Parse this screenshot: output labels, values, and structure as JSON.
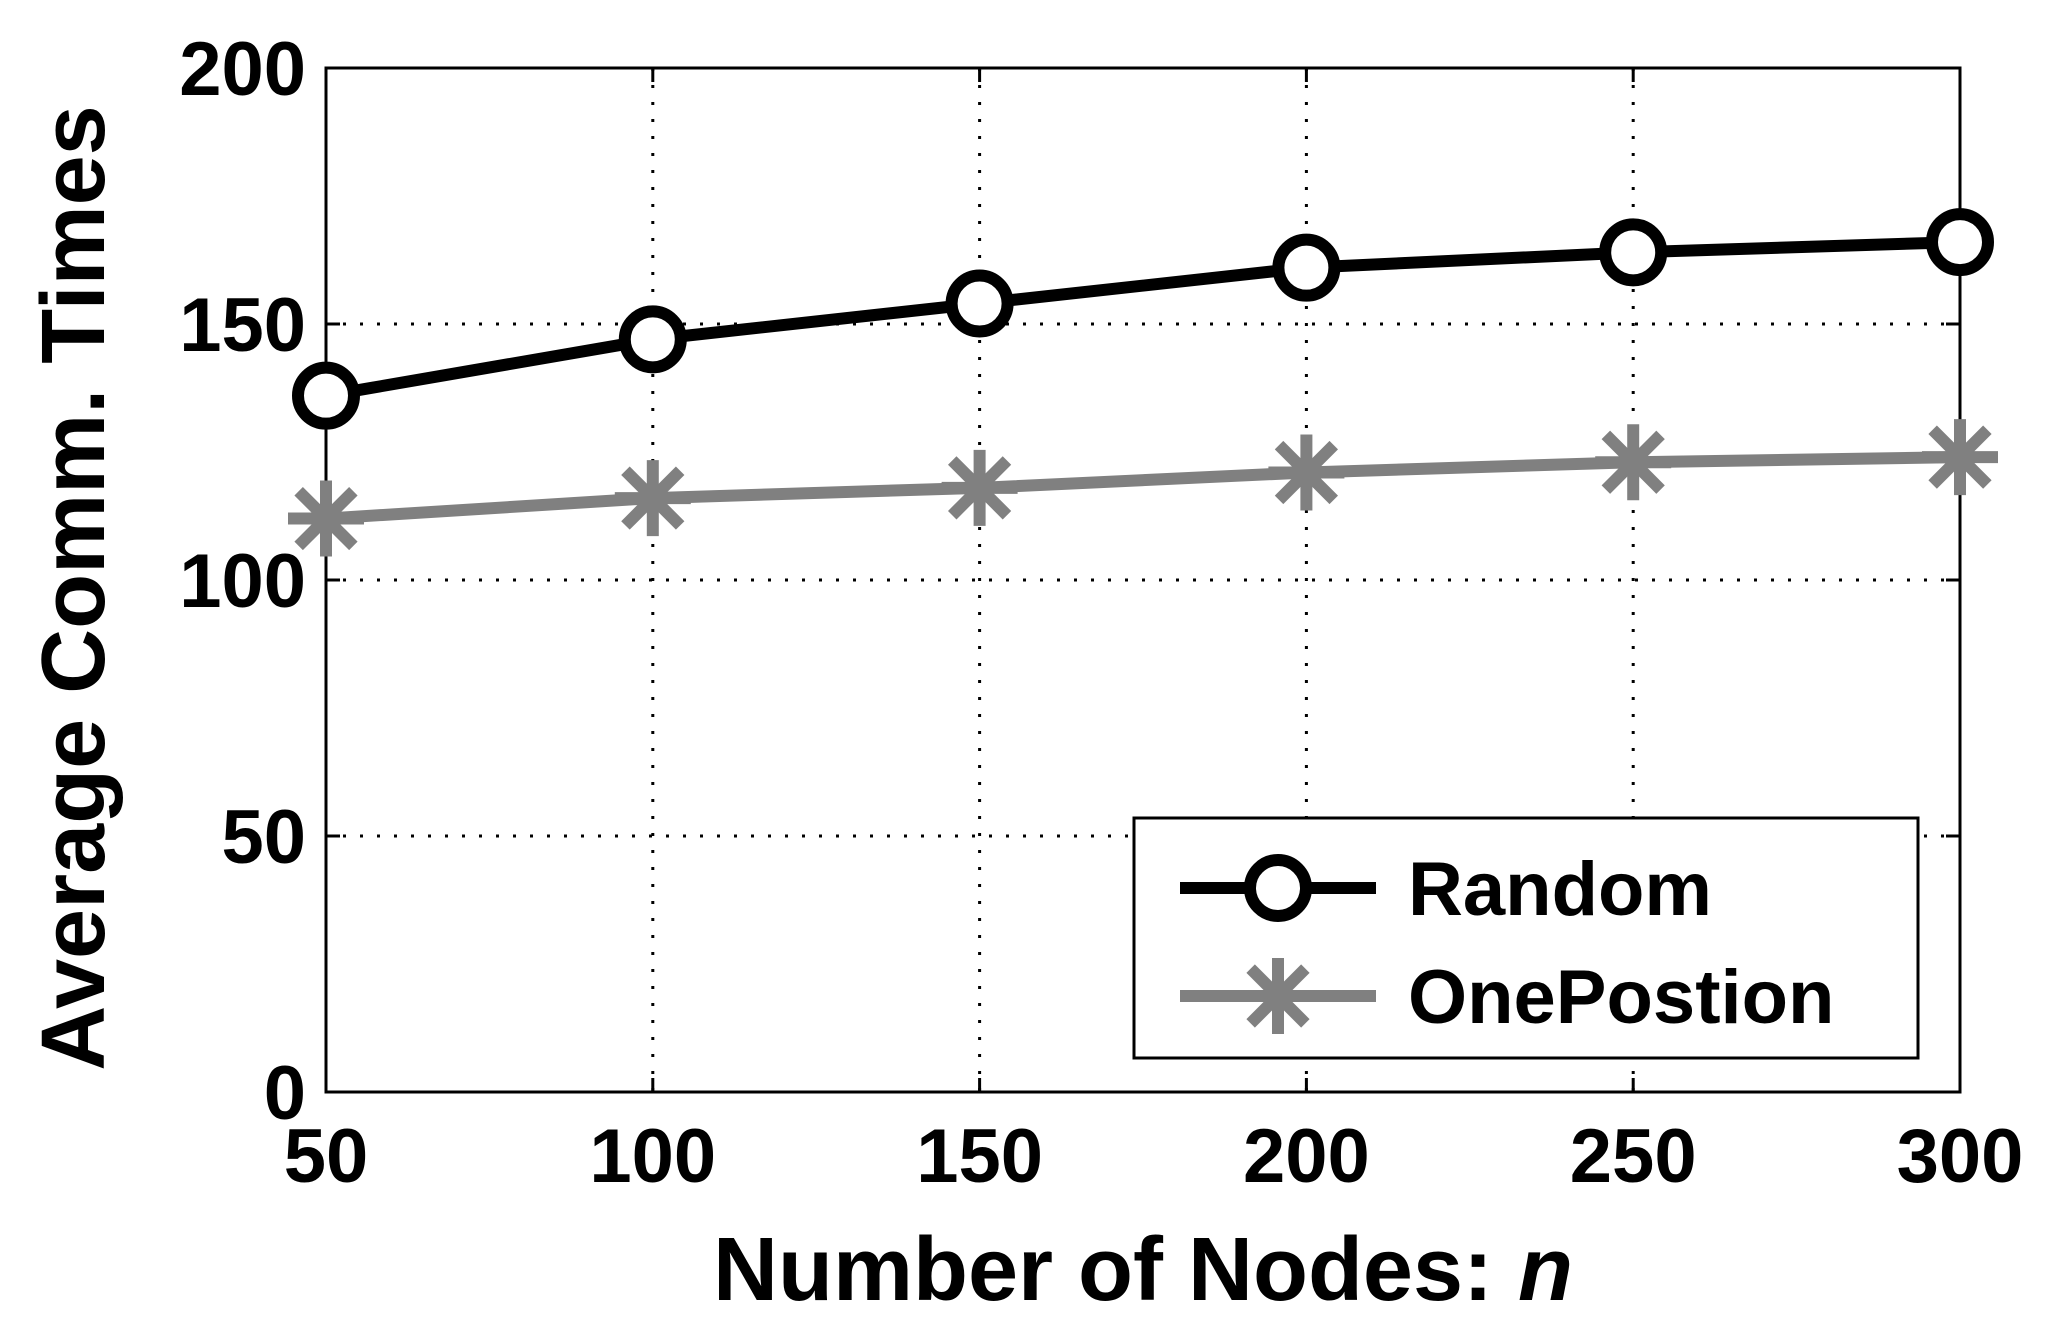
{
  "chart_data": {
    "type": "line",
    "title": "",
    "xlabel": "Number of Nodes: ",
    "xlabel_var": "n",
    "ylabel": "Average Comm. Times",
    "x": [
      50,
      100,
      150,
      200,
      250,
      300
    ],
    "xlim": [
      50,
      300
    ],
    "ylim": [
      0,
      200
    ],
    "xticks": [
      50,
      100,
      150,
      200,
      250,
      300
    ],
    "yticks": [
      0,
      50,
      100,
      150,
      200
    ],
    "grid": true,
    "legend_position": "bottom-right",
    "series": [
      {
        "name": "Random",
        "values": [
          136,
          147,
          154,
          161,
          164,
          166
        ],
        "color": "#000000",
        "marker": "circle"
      },
      {
        "name": "OnePostion",
        "values": [
          112,
          116,
          118,
          121,
          123,
          124
        ],
        "color": "#808080",
        "marker": "asterisk"
      }
    ]
  }
}
